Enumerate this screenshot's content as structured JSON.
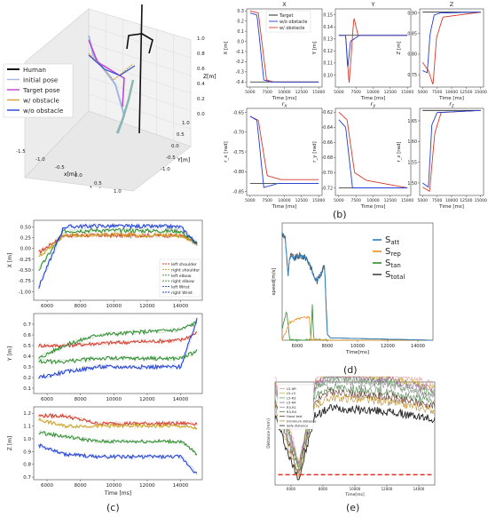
{
  "captions": {
    "a": "(a)",
    "b": "(b)",
    "c": "(c)",
    "d": "(d)",
    "e": "(e)"
  },
  "colors": {
    "blue": "#1f3fd6",
    "red": "#d43a2a",
    "green": "#2e8b2e",
    "orange": "#f08c1e",
    "purple": "#c040d0",
    "grey": "#777777",
    "black": "#111111"
  },
  "chart_data": [
    {
      "id": "a",
      "type": "scatter",
      "legend": [
        "Human",
        "Initial pose",
        "Target pose",
        "w/ obstacle",
        "w/o obstacle"
      ],
      "axis_labels": {
        "x": "x[m]",
        "y": "Y[m]",
        "z": "Z[m]"
      },
      "x_ticks": [
        "-1.5",
        "-1.0",
        "-0.5",
        "0.0",
        "0.5",
        "1.0"
      ],
      "y_ticks": [
        "1.0",
        "0.5",
        "0.0",
        "-0.5",
        "-1.0"
      ],
      "z_ticks": [
        "1.0",
        "0.8",
        "0.6",
        "0.4",
        "0.2",
        "0.0"
      ]
    },
    {
      "id": "b",
      "type": "line",
      "legend": [
        "Target",
        "w/o obstacle",
        "w/ obstacle"
      ],
      "x_ticks": [
        "5000",
        "7500",
        "10000",
        "12500",
        "15000"
      ],
      "xlabel": "Time [ms]",
      "subplots": [
        {
          "title": "X",
          "ylabel": "X [m]",
          "ylim": [
            -0.45,
            0.32
          ],
          "yticks": [
            "0.3",
            "0.2",
            "0.1",
            "0.0",
            "-0.1",
            "-0.2",
            "-0.3",
            "-0.4"
          ],
          "target": -0.4,
          "series": {
            "blue": [
              [
                5000,
                0.28
              ],
              [
                6000,
                0.26
              ],
              [
                7000,
                -0.38
              ],
              [
                8000,
                -0.4
              ],
              [
                15000,
                -0.4
              ]
            ],
            "red": [
              [
                5000,
                0.3
              ],
              [
                6200,
                0.28
              ],
              [
                7400,
                -0.38
              ],
              [
                8500,
                -0.4
              ],
              [
                15000,
                -0.4
              ]
            ]
          }
        },
        {
          "title": "Y",
          "ylabel": "Y [m]",
          "ylim": [
            0.09,
            0.155
          ],
          "yticks": [
            "0.15",
            "0.14",
            "0.13",
            "0.12",
            "0.11",
            "0.10"
          ],
          "target": 0.133,
          "series": {
            "blue": [
              [
                5000,
                0.133
              ],
              [
                6000,
                0.133
              ],
              [
                6300,
                0.105
              ],
              [
                6700,
                0.128
              ],
              [
                8000,
                0.133
              ],
              [
                15000,
                0.133
              ]
            ],
            "red": [
              [
                5000,
                0.133
              ],
              [
                6000,
                0.133
              ],
              [
                6500,
                0.092
              ],
              [
                7200,
                0.148
              ],
              [
                7800,
                0.133
              ],
              [
                15000,
                0.133
              ]
            ]
          }
        },
        {
          "title": "Z",
          "ylabel": "Z [m]",
          "ylim": [
            0.72,
            0.91
          ],
          "yticks": [
            "0.90",
            "0.85",
            "0.80",
            "0.75"
          ],
          "target": 0.902,
          "series": {
            "blue": [
              [
                5000,
                0.76
              ],
              [
                5800,
                0.755
              ],
              [
                6300,
                0.85
              ],
              [
                7000,
                0.895
              ],
              [
                8000,
                0.9
              ],
              [
                15000,
                0.902
              ]
            ],
            "red": [
              [
                5000,
                0.78
              ],
              [
                6000,
                0.76
              ],
              [
                6800,
                0.725
              ],
              [
                7400,
                0.84
              ],
              [
                8500,
                0.89
              ],
              [
                15000,
                0.902
              ]
            ]
          }
        },
        {
          "title": "r_x",
          "ylabel": "r_x [rad]",
          "ylim": [
            -0.86,
            -0.64
          ],
          "yticks": [
            "-0.65",
            "-0.70",
            "-0.75",
            "-0.80",
            "-0.85"
          ],
          "target": -0.83,
          "series": {
            "blue": [
              [
                5000,
                -0.66
              ],
              [
                6000,
                -0.67
              ],
              [
                7000,
                -0.84
              ],
              [
                9000,
                -0.83
              ],
              [
                15000,
                -0.83
              ]
            ],
            "red": [
              [
                5000,
                -0.66
              ],
              [
                6200,
                -0.67
              ],
              [
                7500,
                -0.81
              ],
              [
                9500,
                -0.82
              ],
              [
                15000,
                -0.82
              ]
            ]
          }
        },
        {
          "title": "r_y",
          "ylabel": "r_y [rad]",
          "ylim": [
            -0.73,
            -0.615
          ],
          "yticks": [
            "-0.62",
            "-0.64",
            "-0.66",
            "-0.68",
            "-0.70",
            "-0.72"
          ],
          "target": -0.72,
          "series": {
            "blue": [
              [
                5000,
                -0.63
              ],
              [
                6000,
                -0.64
              ],
              [
                7000,
                -0.72
              ],
              [
                8000,
                -0.72
              ],
              [
                15000,
                -0.72
              ]
            ],
            "red": [
              [
                5000,
                -0.62
              ],
              [
                6200,
                -0.63
              ],
              [
                7300,
                -0.7
              ],
              [
                9000,
                -0.71
              ],
              [
                15000,
                -0.72
              ]
            ]
          }
        },
        {
          "title": "r_z",
          "ylabel": "r_z [rad]",
          "ylim": [
            1.47,
            1.68
          ],
          "yticks": [
            "1.65",
            "1.60",
            "1.55",
            "1.50"
          ],
          "target": 1.675,
          "series": {
            "blue": [
              [
                5000,
                1.5
              ],
              [
                6000,
                1.49
              ],
              [
                6600,
                1.64
              ],
              [
                7500,
                1.67
              ],
              [
                15000,
                1.675
              ]
            ],
            "red": [
              [
                5000,
                1.49
              ],
              [
                6200,
                1.48
              ],
              [
                7100,
                1.62
              ],
              [
                8200,
                1.67
              ],
              [
                15000,
                1.675
              ]
            ]
          }
        }
      ]
    },
    {
      "id": "c",
      "type": "line",
      "legend": [
        "left shoulder",
        "right shoulder",
        "left elbow",
        "right elbow",
        "left Wrist",
        "right Wrist"
      ],
      "x_ticks": [
        "6000",
        "8000",
        "10000",
        "12000",
        "14000"
      ],
      "xlabel": "Time [ms]",
      "subplots": [
        {
          "ylabel": "X [m]",
          "ylim": [
            -1.2,
            0.65
          ],
          "yticks": [
            "0.50",
            "0.25",
            "0.00",
            "-0.25",
            "-0.50",
            "-0.75",
            "-1.00"
          ],
          "series": [
            {
              "c": "red",
              "y": [
                [
                  5500,
                  -0.1
                ],
                [
                  7000,
                  0.3
                ],
                [
                  9000,
                  0.3
                ],
                [
                  14000,
                  0.3
                ],
                [
                  15000,
                  0.1
                ]
              ]
            },
            {
              "c": "orange",
              "y": [
                [
                  5500,
                  -0.2
                ],
                [
                  7000,
                  0.3
                ],
                [
                  9000,
                  0.32
                ],
                [
                  14000,
                  0.3
                ],
                [
                  15000,
                  0.1
                ]
              ]
            },
            {
              "c": "green",
              "y": [
                [
                  5500,
                  -0.5
                ],
                [
                  7000,
                  0.4
                ],
                [
                  9000,
                  0.42
                ],
                [
                  14000,
                  0.4
                ],
                [
                  15000,
                  0.1
                ]
              ]
            },
            {
              "c": "blue",
              "y": [
                [
                  5500,
                  -0.9
                ],
                [
                  7000,
                  0.5
                ],
                [
                  9000,
                  0.52
                ],
                [
                  14000,
                  0.5
                ],
                [
                  15000,
                  0.1
                ]
              ]
            }
          ]
        },
        {
          "ylabel": "Y [m]",
          "ylim": [
            0.05,
            0.8
          ],
          "yticks": [
            "0.7",
            "0.6",
            "0.5",
            "0.4",
            "0.3",
            "0.2",
            "0.1"
          ],
          "series": [
            {
              "c": "red",
              "y": [
                [
                  5500,
                  0.5
                ],
                [
                  7000,
                  0.5
                ],
                [
                  9000,
                  0.52
                ],
                [
                  14000,
                  0.55
                ],
                [
                  15000,
                  0.62
                ]
              ]
            },
            {
              "c": "green",
              "y": [
                [
                  5500,
                  0.38
                ],
                [
                  7000,
                  0.5
                ],
                [
                  9000,
                  0.6
                ],
                [
                  14000,
                  0.65
                ],
                [
                  15000,
                  0.72
                ]
              ]
            },
            {
              "c": "blue",
              "y": [
                [
                  5500,
                  0.2
                ],
                [
                  7000,
                  0.25
                ],
                [
                  9000,
                  0.3
                ],
                [
                  14000,
                  0.3
                ],
                [
                  15000,
                  0.75
                ]
              ]
            },
            {
              "c": "green",
              "y": [
                [
                  5500,
                  0.35
                ],
                [
                  7000,
                  0.35
                ],
                [
                  9000,
                  0.38
                ],
                [
                  14000,
                  0.38
                ],
                [
                  15000,
                  0.45
                ]
              ]
            }
          ]
        },
        {
          "ylabel": "Z [m]",
          "ylim": [
            0.68,
            1.25
          ],
          "yticks": [
            "1.2",
            "1.1",
            "1.0",
            "0.9",
            "0.8",
            "0.7"
          ],
          "series": [
            {
              "c": "red",
              "y": [
                [
                  5500,
                  1.18
                ],
                [
                  7000,
                  1.18
                ],
                [
                  9000,
                  1.12
                ],
                [
                  14000,
                  1.12
                ],
                [
                  15000,
                  1.12
                ]
              ]
            },
            {
              "c": "orange",
              "y": [
                [
                  5500,
                  1.15
                ],
                [
                  7000,
                  1.1
                ],
                [
                  9000,
                  1.1
                ],
                [
                  14000,
                  1.1
                ],
                [
                  15000,
                  1.08
                ]
              ]
            },
            {
              "c": "green",
              "y": [
                [
                  5500,
                  1.05
                ],
                [
                  7000,
                  1.02
                ],
                [
                  9000,
                  0.98
                ],
                [
                  14000,
                  0.98
                ],
                [
                  15000,
                  0.88
                ]
              ]
            },
            {
              "c": "blue",
              "y": [
                [
                  5500,
                  0.95
                ],
                [
                  7000,
                  0.88
                ],
                [
                  9000,
                  0.86
                ],
                [
                  14000,
                  0.86
                ],
                [
                  15000,
                  0.72
                ]
              ]
            }
          ]
        }
      ]
    },
    {
      "id": "d",
      "type": "line",
      "ylabel": "speed[m/s]",
      "xlabel": "Time[ms]",
      "legend": [
        "S_att",
        "S_rep",
        "S_tan",
        "S_total"
      ],
      "x_ticks": [
        "6000",
        "8000",
        "10000",
        "12000",
        "14000"
      ],
      "xlim": [
        5000,
        15000
      ]
    },
    {
      "id": "e",
      "type": "line",
      "ylabel": "Distance [mm]",
      "xlabel": "Time[ms]",
      "legend": [
        "L5-HR",
        "L5-L3",
        "L5-R3",
        "L5-R4",
        "R3-R1",
        "R3-R4",
        "Hand test",
        "minimum distance",
        "Safe distance"
      ],
      "x_ticks": [
        "6000",
        "8000",
        "10000",
        "12000",
        "14000"
      ],
      "safe_distance": 0.1
    }
  ]
}
